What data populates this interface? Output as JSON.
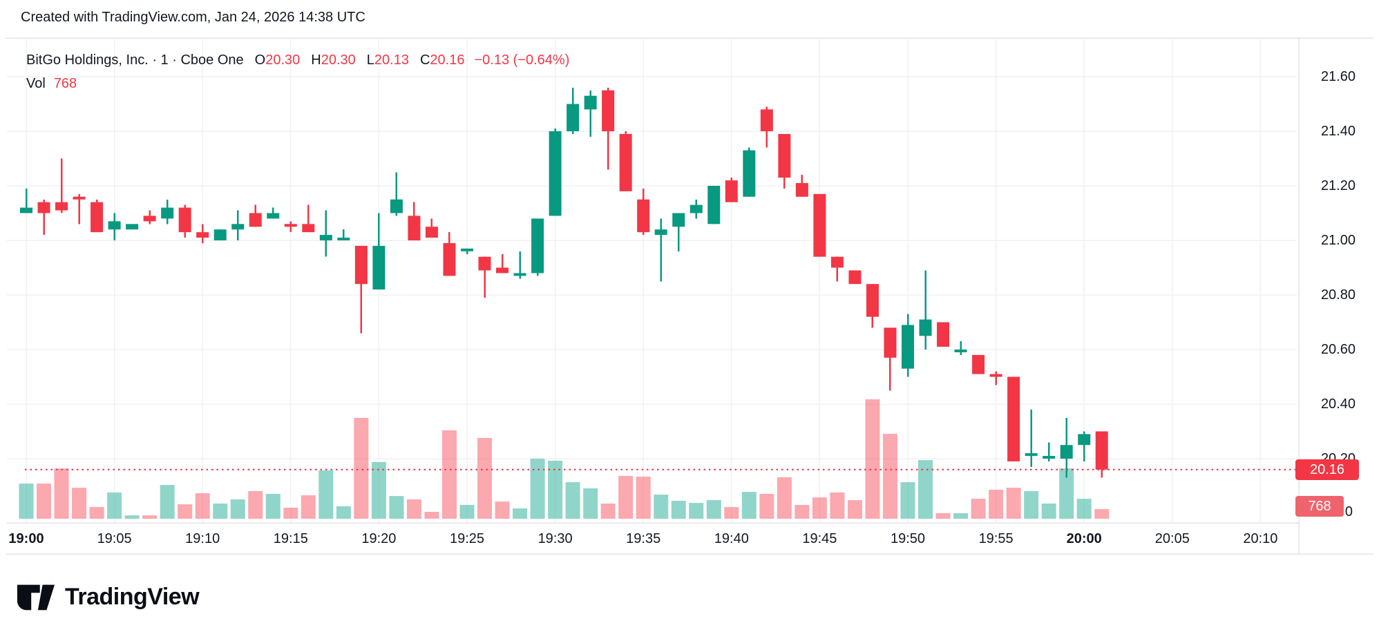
{
  "header": {
    "credit": "Created with TradingView.com, Jan 24, 2026 14:38 UTC"
  },
  "legend": {
    "symbol": "BitGo Holdings, Inc.",
    "separator": "·",
    "interval": "1",
    "exchange": "Cboe One",
    "ohlc": [
      {
        "label": "O",
        "value": "20.30"
      },
      {
        "label": "H",
        "value": "20.30"
      },
      {
        "label": "L",
        "value": "20.13"
      },
      {
        "label": "C",
        "value": "20.16"
      }
    ],
    "change": "−0.13 (−0.64%)",
    "vol_label": "Vol",
    "vol_value": "768"
  },
  "price_axis": {
    "ticks": [
      "21.60",
      "21.40",
      "21.20",
      "21.00",
      "20.80",
      "20.60",
      "20.40",
      "20.20"
    ],
    "last_price_badge": "20.16",
    "volume_badge": "768",
    "zero_label": "0"
  },
  "time_axis": {
    "labels": [
      {
        "text": "19:00",
        "bold": true
      },
      {
        "text": "19:05",
        "bold": false
      },
      {
        "text": "19:10",
        "bold": false
      },
      {
        "text": "19:15",
        "bold": false
      },
      {
        "text": "19:20",
        "bold": false
      },
      {
        "text": "19:25",
        "bold": false
      },
      {
        "text": "19:30",
        "bold": false
      },
      {
        "text": "19:35",
        "bold": false
      },
      {
        "text": "19:40",
        "bold": false
      },
      {
        "text": "19:45",
        "bold": false
      },
      {
        "text": "19:50",
        "bold": false
      },
      {
        "text": "19:55",
        "bold": false
      },
      {
        "text": "20:00",
        "bold": true
      },
      {
        "text": "20:05",
        "bold": false
      },
      {
        "text": "20:10",
        "bold": false
      }
    ]
  },
  "logo": {
    "text": "TradingView"
  },
  "colors": {
    "up": "#089981",
    "down": "#f23645",
    "vol_up": "rgba(34,171,148,0.5)",
    "vol_down": "rgba(247,82,95,0.5)",
    "grid": "#f0f1f4",
    "border": "#e0e3eb",
    "text": "#131722",
    "accent_red": "#f23645",
    "badge_volume_bg": "#ef636d",
    "background": "#ffffff"
  },
  "chart_data": {
    "type": "candlestick_with_volume",
    "title": "BitGo Holdings, Inc. 1-minute chart, Cboe One",
    "interval_minutes": 1,
    "last_close": 20.16,
    "last_volume": 768,
    "price_tick_step": 0.2,
    "visible_price_range": [
      20.13,
      21.6
    ],
    "visible_time_range": [
      "19:00",
      "20:14"
    ],
    "grid": true,
    "last_price_line": {
      "price": 20.16,
      "style": "dotted",
      "color": "#f23645"
    },
    "columns": [
      "time",
      "open",
      "high",
      "low",
      "close",
      "volume"
    ],
    "candles": [
      [
        "19:00",
        21.1,
        21.19,
        21.1,
        21.12,
        2800
      ],
      [
        "19:01",
        21.14,
        21.15,
        21.02,
        21.1,
        2800
      ],
      [
        "19:02",
        21.14,
        21.3,
        21.1,
        21.11,
        4000
      ],
      [
        "19:03",
        21.16,
        21.17,
        21.06,
        21.15,
        2470
      ],
      [
        "19:04",
        21.14,
        21.15,
        21.03,
        21.03,
        930
      ],
      [
        "19:05",
        21.04,
        21.1,
        21.0,
        21.07,
        2090
      ],
      [
        "19:06",
        21.04,
        21.06,
        21.04,
        21.06,
        270
      ],
      [
        "19:07",
        21.09,
        21.11,
        21.06,
        21.07,
        270
      ],
      [
        "19:08",
        21.08,
        21.15,
        21.06,
        21.12,
        2690
      ],
      [
        "19:09",
        21.12,
        21.13,
        21.01,
        21.03,
        1150
      ],
      [
        "19:10",
        21.03,
        21.06,
        20.99,
        21.01,
        2030
      ],
      [
        "19:11",
        21.0,
        21.04,
        21.0,
        21.04,
        1210
      ],
      [
        "19:12",
        21.04,
        21.11,
        21.0,
        21.06,
        1540
      ],
      [
        "19:13",
        21.1,
        21.13,
        21.05,
        21.05,
        2200
      ],
      [
        "19:14",
        21.08,
        21.12,
        21.08,
        21.1,
        1980
      ],
      [
        "19:15",
        21.06,
        21.07,
        21.03,
        21.05,
        880
      ],
      [
        "19:16",
        21.06,
        21.13,
        21.03,
        21.03,
        1870
      ],
      [
        "19:17",
        21.0,
        21.11,
        20.94,
        21.02,
        3850
      ],
      [
        "19:18",
        21.0,
        21.04,
        21.0,
        21.01,
        990
      ],
      [
        "19:19",
        20.98,
        20.98,
        20.66,
        20.84,
        8030
      ],
      [
        "19:20",
        20.82,
        21.1,
        20.82,
        20.98,
        4510
      ],
      [
        "19:21",
        21.1,
        21.25,
        21.09,
        21.15,
        1810
      ],
      [
        "19:22",
        21.09,
        21.14,
        21.0,
        21.0,
        1540
      ],
      [
        "19:23",
        21.05,
        21.08,
        21.01,
        21.01,
        550
      ],
      [
        "19:24",
        20.99,
        21.03,
        20.87,
        20.87,
        7040
      ],
      [
        "19:25",
        20.96,
        20.97,
        20.95,
        20.97,
        1100
      ],
      [
        "19:26",
        20.94,
        20.94,
        20.79,
        20.89,
        6430
      ],
      [
        "19:27",
        20.9,
        20.95,
        20.88,
        20.88,
        1370
      ],
      [
        "19:28",
        20.87,
        20.96,
        20.86,
        20.88,
        820
      ],
      [
        "19:29",
        20.88,
        21.08,
        20.87,
        21.08,
        4780
      ],
      [
        "19:30",
        21.09,
        21.41,
        21.09,
        21.4,
        4620
      ],
      [
        "19:31",
        21.4,
        21.56,
        21.39,
        21.5,
        2910
      ],
      [
        "19:32",
        21.48,
        21.55,
        21.38,
        21.53,
        2420
      ],
      [
        "19:33",
        21.55,
        21.56,
        21.26,
        21.4,
        1210
      ],
      [
        "19:34",
        21.39,
        21.4,
        21.18,
        21.18,
        3410
      ],
      [
        "19:35",
        21.15,
        21.19,
        21.02,
        21.03,
        3350
      ],
      [
        "19:36",
        21.02,
        21.08,
        20.85,
        21.04,
        1920
      ],
      [
        "19:37",
        21.05,
        21.1,
        20.96,
        21.1,
        1430
      ],
      [
        "19:38",
        21.1,
        21.15,
        21.08,
        21.13,
        1260
      ],
      [
        "19:39",
        21.06,
        21.2,
        21.06,
        21.2,
        1480
      ],
      [
        "19:40",
        21.22,
        21.23,
        21.14,
        21.14,
        930
      ],
      [
        "19:41",
        21.16,
        21.34,
        21.16,
        21.33,
        2140
      ],
      [
        "19:42",
        21.48,
        21.49,
        21.34,
        21.4,
        1980
      ],
      [
        "19:43",
        21.39,
        21.39,
        21.19,
        21.23,
        3300
      ],
      [
        "19:44",
        21.21,
        21.24,
        21.16,
        21.16,
        1100
      ],
      [
        "19:45",
        21.17,
        21.17,
        20.94,
        20.94,
        1700
      ],
      [
        "19:46",
        20.94,
        20.94,
        20.85,
        20.9,
        2090
      ],
      [
        "19:47",
        20.89,
        20.89,
        20.84,
        20.84,
        1480
      ],
      [
        "19:48",
        20.84,
        20.84,
        20.68,
        20.72,
        9510
      ],
      [
        "19:49",
        20.68,
        20.68,
        20.45,
        20.57,
        6760
      ],
      [
        "19:50",
        20.53,
        20.73,
        20.5,
        20.69,
        2910
      ],
      [
        "19:51",
        20.65,
        20.89,
        20.6,
        20.71,
        4670
      ],
      [
        "19:52",
        20.7,
        20.7,
        20.61,
        20.61,
        440
      ],
      [
        "19:53",
        20.59,
        20.63,
        20.58,
        20.6,
        440
      ],
      [
        "19:54",
        20.58,
        20.58,
        20.51,
        20.51,
        1590
      ],
      [
        "19:55",
        20.51,
        20.52,
        20.47,
        20.5,
        2310
      ],
      [
        "19:56",
        20.5,
        20.5,
        20.19,
        20.19,
        2470
      ],
      [
        "19:57",
        20.21,
        20.38,
        20.17,
        20.22,
        2200
      ],
      [
        "19:58",
        20.2,
        20.26,
        20.19,
        20.21,
        1210
      ],
      [
        "19:59",
        20.2,
        20.35,
        20.13,
        20.25,
        4010
      ],
      [
        "20:00",
        20.25,
        20.3,
        20.19,
        20.29,
        1590
      ],
      [
        "20:01",
        20.3,
        20.3,
        20.13,
        20.16,
        768
      ]
    ]
  }
}
